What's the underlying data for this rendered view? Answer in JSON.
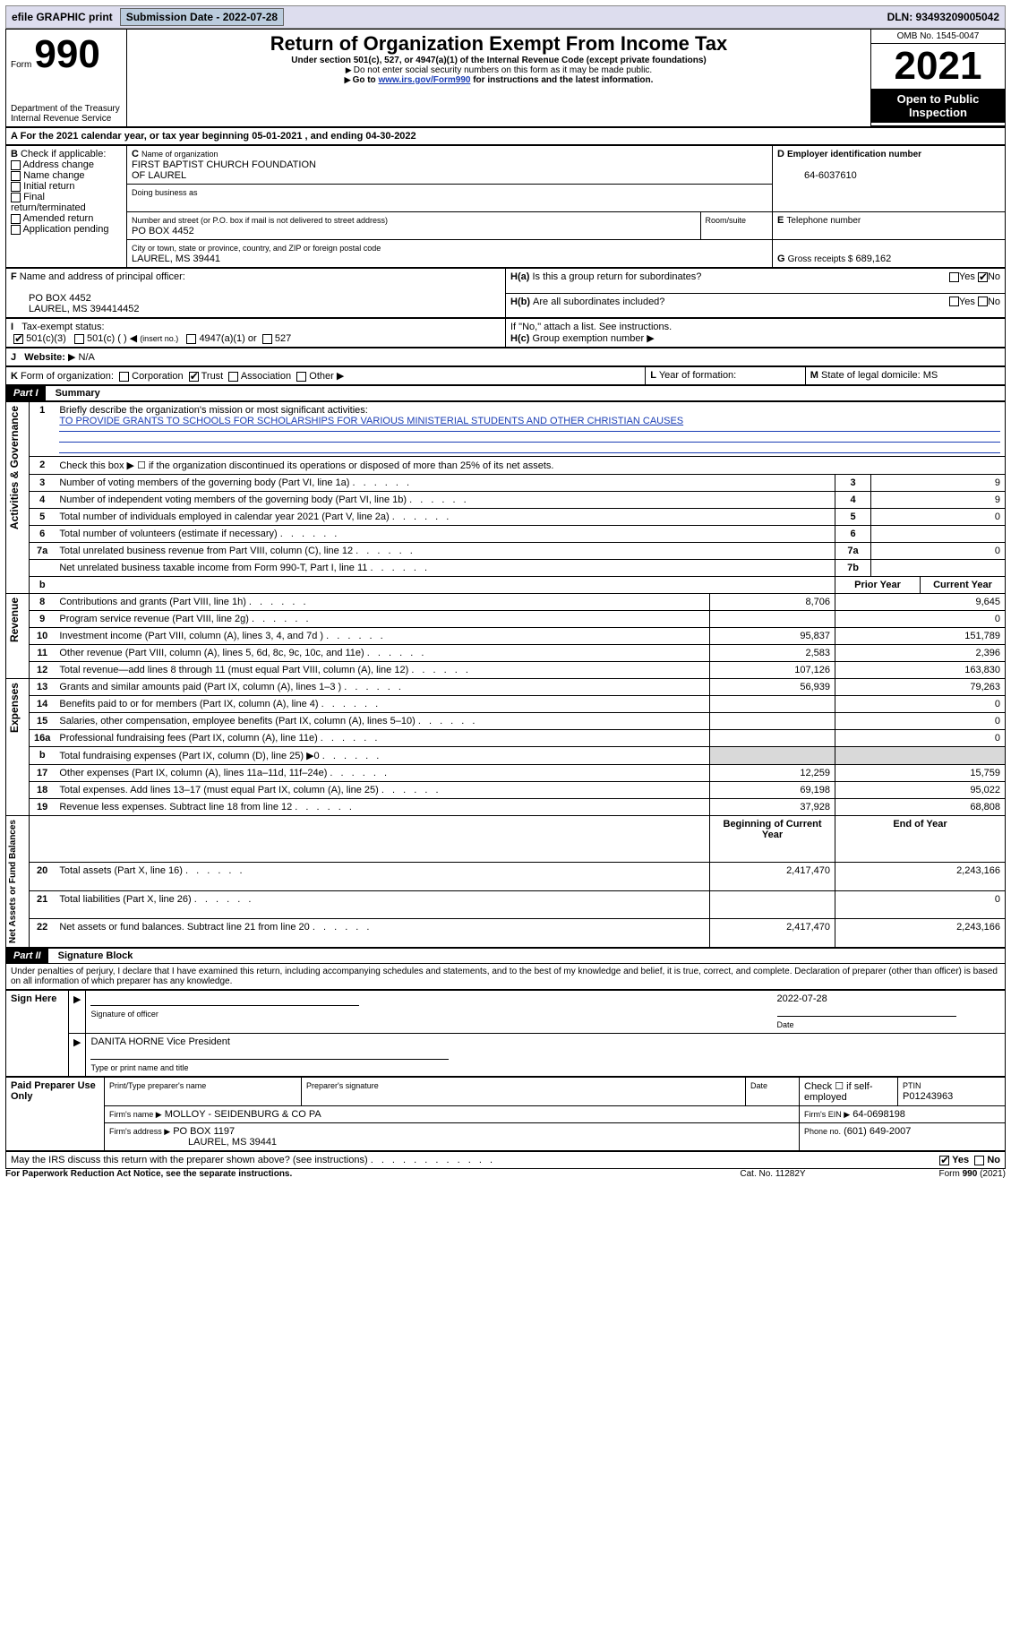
{
  "topbar": {
    "efile": "efile GRAPHIC print",
    "submission_label": "Submission Date - 2022-07-28",
    "dln": "DLN: 93493209005042"
  },
  "header": {
    "form_word": "Form",
    "form_number": "990",
    "dept": "Department of the Treasury",
    "irs": "Internal Revenue Service",
    "title": "Return of Organization Exempt From Income Tax",
    "subtitle": "Under section 501(c), 527, or 4947(a)(1) of the Internal Revenue Code (except private foundations)",
    "warn1": "Do not enter social security numbers on this form as it may be made public.",
    "warn2_pre": "Go to ",
    "warn2_link": "www.irs.gov/Form990",
    "warn2_post": " for instructions and the latest information.",
    "omb": "OMB No. 1545-0047",
    "year": "2021",
    "open": "Open to Public Inspection"
  },
  "periodA": {
    "label_pre": "For the 2021 calendar year, or tax year beginning ",
    "begin": "05-01-2021",
    "mid": " , and ending ",
    "end": "04-30-2022"
  },
  "sectionB": {
    "label": "Check if applicable:",
    "items": [
      "Address change",
      "Name change",
      "Initial return",
      "Final return/terminated",
      "Amended return",
      "Application pending"
    ]
  },
  "sectionC": {
    "name_label": "Name of organization",
    "name1": "FIRST BAPTIST CHURCH FOUNDATION",
    "name2": "OF LAUREL",
    "dba_label": "Doing business as",
    "street_label": "Number and street (or P.O. box if mail is not delivered to street address)",
    "room_label": "Room/suite",
    "street": "PO BOX 4452",
    "city_label": "City or town, state or province, country, and ZIP or foreign postal code",
    "city": "LAUREL, MS  39441"
  },
  "sectionD": {
    "label": "Employer identification number",
    "ein": "64-6037610"
  },
  "sectionE": {
    "label": "Telephone number",
    "value": ""
  },
  "sectionG": {
    "label": "Gross receipts $",
    "value": "689,162"
  },
  "sectionF": {
    "label": "Name and address of principal officer:",
    "line1": "PO BOX 4452",
    "line2": "LAUREL, MS  394414452"
  },
  "sectionH": {
    "ha": "Is this a group return for subordinates?",
    "hb": "Are all subordinates included?",
    "hnote": "If \"No,\" attach a list. See instructions.",
    "hc_label": "Group exemption number",
    "yes": "Yes",
    "no": "No"
  },
  "sectionI": {
    "label": "Tax-exempt status:",
    "opt1": "501(c)(3)",
    "opt2": "501(c) (    )",
    "opt2b": "(insert no.)",
    "opt3": "4947(a)(1) or",
    "opt4": "527"
  },
  "sectionJ": {
    "label": "Website:",
    "value": "N/A"
  },
  "sectionK": {
    "label": "Form of organization:",
    "opts": [
      "Corporation",
      "Trust",
      "Association",
      "Other"
    ]
  },
  "sectionL": {
    "label": "Year of formation:",
    "value": ""
  },
  "sectionM": {
    "label": "State of legal domicile:",
    "value": "MS"
  },
  "part1": {
    "hdr": "Part I",
    "title": "Summary",
    "line1_label": "Briefly describe the organization's mission or most significant activities:",
    "line1_text": "TO PROVIDE GRANTS TO SCHOOLS FOR SCHOLARSHIPS FOR VARIOUS MINISTERIAL STUDENTS AND OTHER CHRISTIAN CAUSES",
    "line2": "Check this box ▶ ☐  if the organization discontinued its operations or disposed of more than 25% of its net assets.",
    "rows_gov": [
      {
        "n": "3",
        "t": "Number of voting members of the governing body (Part VI, line 1a)",
        "box": "3",
        "v": "9"
      },
      {
        "n": "4",
        "t": "Number of independent voting members of the governing body (Part VI, line 1b)",
        "box": "4",
        "v": "9"
      },
      {
        "n": "5",
        "t": "Total number of individuals employed in calendar year 2021 (Part V, line 2a)",
        "box": "5",
        "v": "0"
      },
      {
        "n": "6",
        "t": "Total number of volunteers (estimate if necessary)",
        "box": "6",
        "v": ""
      },
      {
        "n": "7a",
        "t": "Total unrelated business revenue from Part VIII, column (C), line 12",
        "box": "7a",
        "v": "0"
      },
      {
        "n": "",
        "t": "Net unrelated business taxable income from Form 990-T, Part I, line 11",
        "box": "7b",
        "v": ""
      }
    ],
    "col_prior": "Prior Year",
    "col_current": "Current Year",
    "rev": [
      {
        "n": "8",
        "t": "Contributions and grants (Part VIII, line 1h)",
        "p": "8,706",
        "c": "9,645"
      },
      {
        "n": "9",
        "t": "Program service revenue (Part VIII, line 2g)",
        "p": "",
        "c": "0"
      },
      {
        "n": "10",
        "t": "Investment income (Part VIII, column (A), lines 3, 4, and 7d )",
        "p": "95,837",
        "c": "151,789"
      },
      {
        "n": "11",
        "t": "Other revenue (Part VIII, column (A), lines 5, 6d, 8c, 9c, 10c, and 11e)",
        "p": "2,583",
        "c": "2,396"
      },
      {
        "n": "12",
        "t": "Total revenue—add lines 8 through 11 (must equal Part VIII, column (A), line 12)",
        "p": "107,126",
        "c": "163,830"
      }
    ],
    "exp": [
      {
        "n": "13",
        "t": "Grants and similar amounts paid (Part IX, column (A), lines 1–3 )",
        "p": "56,939",
        "c": "79,263"
      },
      {
        "n": "14",
        "t": "Benefits paid to or for members (Part IX, column (A), line 4)",
        "p": "",
        "c": "0"
      },
      {
        "n": "15",
        "t": "Salaries, other compensation, employee benefits (Part IX, column (A), lines 5–10)",
        "p": "",
        "c": "0"
      },
      {
        "n": "16a",
        "t": "Professional fundraising fees (Part IX, column (A), line 11e)",
        "p": "",
        "c": "0"
      },
      {
        "n": "b",
        "t": "Total fundraising expenses (Part IX, column (D), line 25) ▶0",
        "p": "__shade__",
        "c": "__shade__"
      },
      {
        "n": "17",
        "t": "Other expenses (Part IX, column (A), lines 11a–11d, 11f–24e)",
        "p": "12,259",
        "c": "15,759"
      },
      {
        "n": "18",
        "t": "Total expenses. Add lines 13–17 (must equal Part IX, column (A), line 25)",
        "p": "69,198",
        "c": "95,022"
      },
      {
        "n": "19",
        "t": "Revenue less expenses. Subtract line 18 from line 12",
        "p": "37,928",
        "c": "68,808"
      }
    ],
    "col_begin": "Beginning of Current Year",
    "col_end": "End of Year",
    "na": [
      {
        "n": "20",
        "t": "Total assets (Part X, line 16)",
        "p": "2,417,470",
        "c": "2,243,166"
      },
      {
        "n": "21",
        "t": "Total liabilities (Part X, line 26)",
        "p": "",
        "c": "0"
      },
      {
        "n": "22",
        "t": "Net assets or fund balances. Subtract line 21 from line 20",
        "p": "2,417,470",
        "c": "2,243,166"
      }
    ],
    "side_gov": "Activities & Governance",
    "side_rev": "Revenue",
    "side_exp": "Expenses",
    "side_na": "Net Assets or\nFund Balances"
  },
  "part2": {
    "hdr": "Part II",
    "title": "Signature Block",
    "perjury": "Under penalties of perjury, I declare that I have examined this return, including accompanying schedules and statements, and to the best of my knowledge and belief, it is true, correct, and complete. Declaration of preparer (other than officer) is based on all information of which preparer has any knowledge.",
    "sign_here": "Sign Here",
    "sig_officer": "Signature of officer",
    "sig_date_label": "Date",
    "sig_date": "2022-07-28",
    "typed_label": "Type or print name and title",
    "typed_name": "DANITA HORNE  Vice President",
    "paid": "Paid Preparer Use Only",
    "p_name_label": "Print/Type preparer's name",
    "p_sig_label": "Preparer's signature",
    "p_date_label": "Date",
    "p_check": "Check ☐ if self-employed",
    "p_ptin_label": "PTIN",
    "p_ptin": "P01243963",
    "firm_name_label": "Firm's name    ▶",
    "firm_name": "MOLLOY - SEIDENBURG & CO PA",
    "firm_ein_label": "Firm's EIN ▶",
    "firm_ein": "64-0698198",
    "firm_addr_label": "Firm's address ▶",
    "firm_addr1": "PO BOX 1197",
    "firm_addr2": "LAUREL, MS  39441",
    "firm_phone_label": "Phone no.",
    "firm_phone": "(601) 649-2007",
    "discuss": "May the IRS discuss this return with the preparer shown above? (see instructions)",
    "paperwork": "For Paperwork Reduction Act Notice, see the separate instructions.",
    "catno": "Cat. No. 11282Y",
    "formfoot": "Form 990 (2021)"
  }
}
